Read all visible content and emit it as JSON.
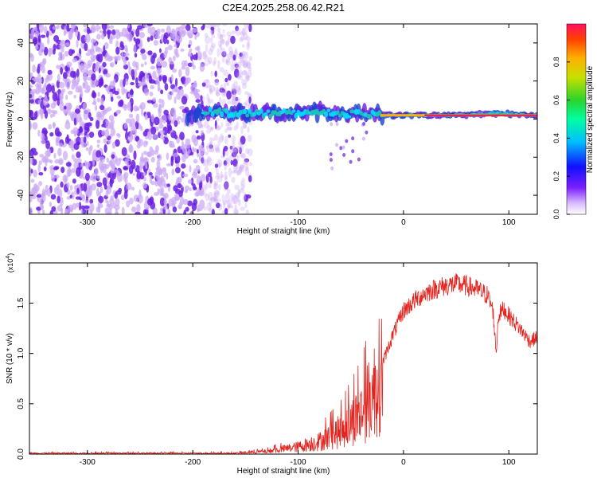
{
  "figure_title": "C2E4.2025.258.06.42.R21",
  "colors": {
    "line": "#e3231e",
    "axis": "#000000",
    "noise": "#6a1fe0",
    "noise_light": "#c9a6f5",
    "band": "#1a3fd0",
    "band_mid": "#19c9b8",
    "band_core": "#e0105a"
  },
  "chart_data": [
    {
      "type": "heatmap",
      "title": "C2E4.2025.258.06.42.R21",
      "xlabel": "Height of straight line (km)",
      "ylabel": "Frequency (Hz)",
      "xlim": [
        -355,
        127
      ],
      "ylim": [
        -50,
        50
      ],
      "xticks": [
        -300,
        -200,
        -100,
        0,
        100
      ],
      "yticks": [
        -40,
        -20,
        0,
        20,
        40
      ],
      "colorbar": {
        "label": "Normalized spectral amplitude",
        "range": [
          0,
          1
        ],
        "ticks": [
          0.0,
          0.2,
          0.4,
          0.6,
          0.8
        ],
        "colors": [
          "#ffffff",
          "#d9b8ff",
          "#7a1fff",
          "#1010ff",
          "#00bfff",
          "#00ffa0",
          "#2bd42b",
          "#c8e000",
          "#ffb000",
          "#ff4000",
          "#ff1060"
        ]
      },
      "band_path": [
        {
          "x": -200,
          "freq": 4
        },
        {
          "x": -150,
          "freq": 3
        },
        {
          "x": -100,
          "freq": 3
        },
        {
          "x": -75,
          "freq": 4
        },
        {
          "x": -60,
          "freq": 2
        },
        {
          "x": -40,
          "freq": 3
        },
        {
          "x": -20,
          "freq": 2
        },
        {
          "x": 0,
          "freq": 2
        },
        {
          "x": 50,
          "freq": 2
        },
        {
          "x": 90,
          "freq": 3
        },
        {
          "x": 127,
          "freq": 2
        }
      ],
      "noise_region": [
        -355,
        -165
      ]
    },
    {
      "type": "line",
      "xlabel": "Height of straight line (km)",
      "ylabel": "SNR (10 * v/v)",
      "y_exponent": "(x10",
      "y_exponent_power": "4",
      "y_exponent_close": ")",
      "xlim": [
        -355,
        127
      ],
      "ylim": [
        0,
        1.9
      ],
      "xticks": [
        -300,
        -200,
        -100,
        0,
        100
      ],
      "yticks": [
        "0.0",
        "0.5",
        "1.0",
        "1.5"
      ],
      "envelope": {
        "x": [
          -355,
          -160,
          -130,
          -100,
          -80,
          -60,
          -40,
          -30,
          -20,
          -10,
          0,
          10,
          20,
          30,
          40,
          50,
          60,
          70,
          80,
          85,
          88,
          90,
          95,
          100,
          110,
          120,
          127
        ],
        "y": [
          0.01,
          0.01,
          0.03,
          0.08,
          0.14,
          0.25,
          0.45,
          0.65,
          0.95,
          1.25,
          1.5,
          1.6,
          1.68,
          1.73,
          1.76,
          1.78,
          1.76,
          1.72,
          1.66,
          1.5,
          1.05,
          1.45,
          1.52,
          1.45,
          1.32,
          1.18,
          1.22
        ]
      },
      "series_name": "SNR"
    }
  ]
}
